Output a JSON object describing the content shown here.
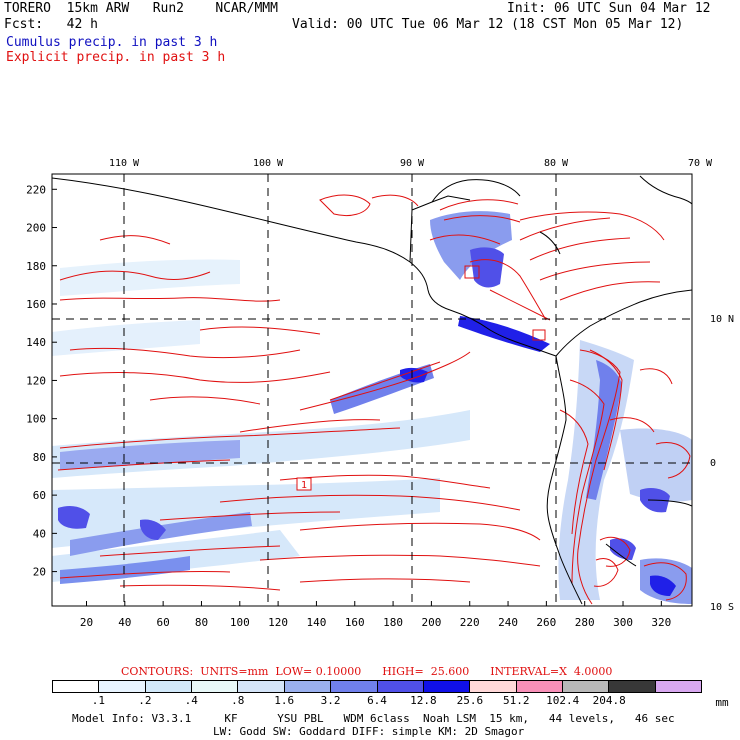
{
  "header": {
    "model": "TORERO  15km ARW   Run2    NCAR/MMM",
    "init": "Init: 06 UTC Sun 04 Mar 12",
    "fcst_label": "Fcst:   42 h",
    "valid": "Valid: 00 UTC Tue 06 Mar 12 (18 CST Mon 05 Mar 12)",
    "line_cumulus": "Cumulus precip. in past 3 h",
    "line_explicit": "Explicit precip. in past 3 h"
  },
  "map": {
    "lon_labels": [
      "110 W",
      "100 W",
      "90 W",
      "80 W",
      "70 W"
    ],
    "lat_labels": [
      "10 N",
      "0",
      "10 S"
    ],
    "y_ticks": [
      "220",
      "200",
      "180",
      "160",
      "140",
      "120",
      "100",
      "80",
      "60",
      "40",
      "20"
    ],
    "x_ticks": [
      "20",
      "40",
      "60",
      "80",
      "100",
      "120",
      "140",
      "160",
      "180",
      "200",
      "220",
      "240",
      "260",
      "280",
      "300",
      "320"
    ],
    "boxed_labels": [
      "1"
    ]
  },
  "contours": {
    "text": "CONTOURS:  UNITS=mm  LOW= 0.10000      HIGH=  25.600      INTERVAL=X  4.0000"
  },
  "legend": {
    "colors": [
      "#ffffff",
      "#e8f4ff",
      "#d2e9fa",
      "#e8f8f8",
      "#d4e4f8",
      "#9ab0ee",
      "#7080ec",
      "#5050e8",
      "#1010e8",
      "#ffd8d8",
      "#f890b8",
      "#b8b8b8",
      "#383838",
      "#d8a8f0"
    ],
    "labels": [
      ".1",
      ".2",
      ".4",
      ".8",
      "1.6",
      "3.2",
      "6.4",
      "12.8",
      "25.6",
      "51.2",
      "102.4",
      "204.8"
    ],
    "unit": "mm"
  },
  "footer": {
    "line1": "Model Info: V3.3.1     KF      YSU PBL   WDM 6class  Noah LSM  15 km,   44 levels,   46 sec",
    "line2": "LW: Godd SW: Goddard DIFF: simple KM: 2D Smagor"
  }
}
